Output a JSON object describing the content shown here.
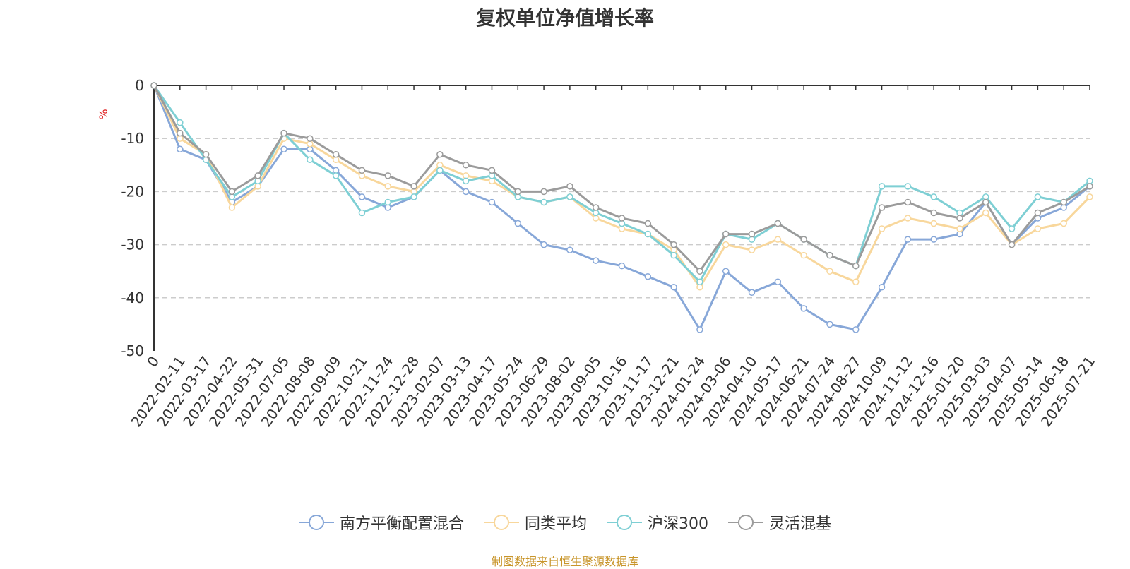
{
  "chart_data": {
    "type": "line",
    "title": "复权单位净值增长率",
    "ylabel": "%",
    "ylim": [
      -50,
      0
    ],
    "yticks": [
      0,
      -10,
      -20,
      -30,
      -40,
      -50
    ],
    "grid": true,
    "legend_position": "bottom-center",
    "x_ticks": [
      "0",
      "2022-02-11",
      "2022-03-17",
      "2022-04-22",
      "2022-05-31",
      "2022-07-05",
      "2022-08-08",
      "2022-09-09",
      "2022-10-21",
      "2022-11-24",
      "2022-12-28",
      "2023-02-07",
      "2023-03-13",
      "2023-04-17",
      "2023-05-24",
      "2023-06-29",
      "2023-08-02",
      "2023-09-05",
      "2023-10-16",
      "2023-11-17",
      "2023-12-21",
      "2024-01-24",
      "2024-03-06",
      "2024-04-10",
      "2024-05-17",
      "2024-06-21",
      "2024-07-24",
      "2024-08-27",
      "2024-10-09",
      "2024-11-12",
      "2024-12-16",
      "2025-01-20",
      "2025-03-03",
      "2025-04-07",
      "2025-05-14",
      "2025-06-18",
      "2025-07-21"
    ],
    "series": [
      {
        "name": "南方平衡配置混合",
        "color": "#87a7d8",
        "values": [
          0,
          -12,
          -14,
          -22,
          -19,
          -12,
          -12,
          -16,
          -21,
          -23,
          -21,
          -16,
          -20,
          -22,
          -26,
          -30,
          -31,
          -33,
          -34,
          -36,
          -38,
          -46,
          -35,
          -39,
          -37,
          -42,
          -45,
          -46,
          -38,
          -29,
          -29,
          -28,
          -22,
          -30,
          -25,
          -23,
          -19
        ]
      },
      {
        "name": "同类平均",
        "color": "#f8d79c",
        "values": [
          0,
          -10,
          -13,
          -23,
          -19,
          -10,
          -11,
          -14,
          -17,
          -19,
          -20,
          -15,
          -17,
          -18,
          -21,
          -22,
          -21,
          -25,
          -27,
          -28,
          -31,
          -38,
          -30,
          -31,
          -29,
          -32,
          -35,
          -37,
          -27,
          -25,
          -26,
          -27,
          -24,
          -30,
          -27,
          -26,
          -21
        ]
      },
      {
        "name": "沪深300",
        "color": "#7ecfd4",
        "values": [
          0,
          -7,
          -14,
          -21,
          -18,
          -9,
          -14,
          -17,
          -24,
          -22,
          -21,
          -16,
          -18,
          -17,
          -21,
          -22,
          -21,
          -24,
          -26,
          -28,
          -32,
          -37,
          -28,
          -29,
          -26,
          -29,
          -32,
          -34,
          -19,
          -19,
          -21,
          -24,
          -21,
          -27,
          -21,
          -22,
          -18
        ]
      },
      {
        "name": "灵活混基",
        "color": "#9b9b9b",
        "values": [
          0,
          -9,
          -13,
          -20,
          -17,
          -9,
          -10,
          -13,
          -16,
          -17,
          -19,
          -13,
          -15,
          -16,
          -20,
          -20,
          -19,
          -23,
          -25,
          -26,
          -30,
          -35,
          -28,
          -28,
          -26,
          -29,
          -32,
          -34,
          -23,
          -22,
          -24,
          -25,
          -22,
          -30,
          -24,
          -22,
          -19
        ]
      }
    ]
  },
  "source_note": "制图数据来自恒生聚源数据库"
}
